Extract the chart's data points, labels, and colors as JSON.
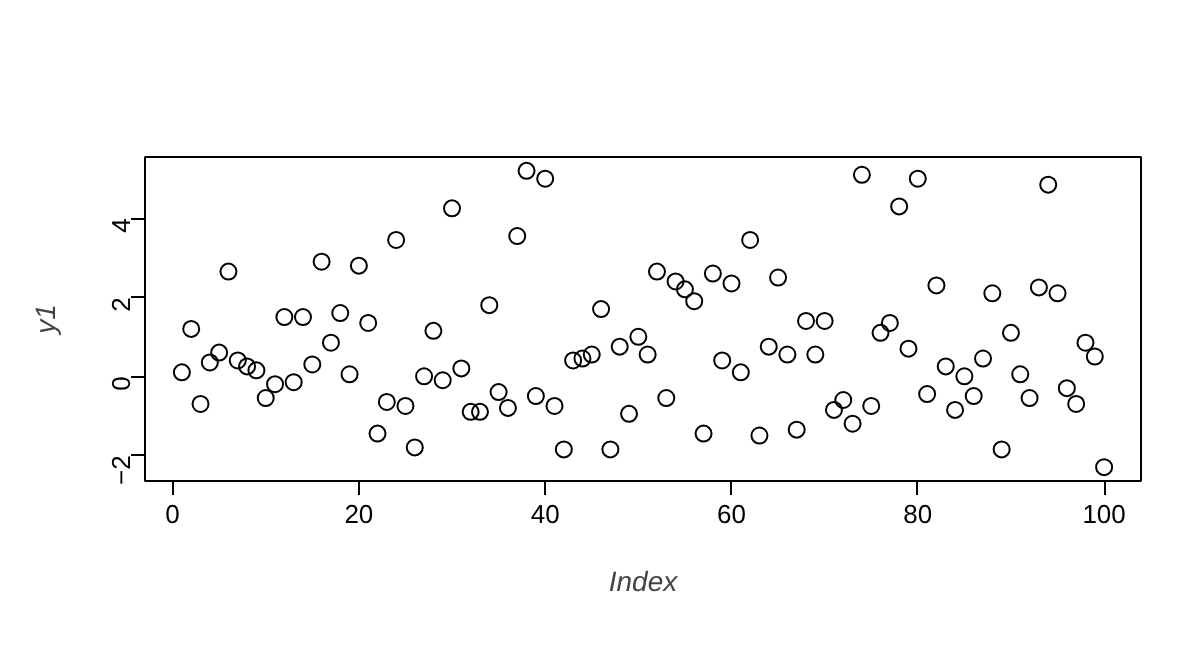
{
  "chart_data": {
    "type": "scatter",
    "xlabel": "Index",
    "ylabel": "y1",
    "marker": "circle",
    "grid": false,
    "xlim": [
      -2.96,
      103.96
    ],
    "ylim": [
      -2.65,
      5.55
    ],
    "xticks": [
      0,
      20,
      40,
      60,
      80,
      100
    ],
    "yticks": [
      -2,
      0,
      2,
      4
    ],
    "x": [
      1,
      2,
      3,
      4,
      5,
      6,
      7,
      8,
      9,
      10,
      11,
      12,
      13,
      14,
      15,
      16,
      17,
      18,
      19,
      20,
      21,
      22,
      23,
      24,
      25,
      26,
      27,
      28,
      29,
      30,
      31,
      32,
      33,
      34,
      35,
      36,
      37,
      38,
      39,
      40,
      41,
      42,
      43,
      44,
      45,
      46,
      47,
      48,
      49,
      50,
      51,
      52,
      53,
      54,
      55,
      56,
      57,
      58,
      59,
      60,
      61,
      62,
      63,
      64,
      65,
      66,
      67,
      68,
      69,
      70,
      71,
      72,
      73,
      74,
      75,
      76,
      77,
      78,
      79,
      80,
      81,
      82,
      83,
      84,
      85,
      86,
      87,
      88,
      89,
      90,
      91,
      92,
      93,
      94,
      95,
      96,
      97,
      98,
      99,
      100
    ],
    "series": [
      {
        "color": "#000000",
        "values": [
          0.1,
          1.2,
          -0.7,
          0.35,
          0.6,
          2.65,
          0.4,
          0.25,
          0.15,
          -0.55,
          -0.2,
          1.5,
          -0.15,
          1.5,
          0.3,
          2.9,
          0.85,
          1.6,
          0.05,
          2.8,
          1.35,
          -1.45,
          -0.65,
          3.45,
          -0.75,
          -1.8,
          0.0,
          1.15,
          -0.1,
          4.25,
          0.2,
          -0.9,
          -0.9,
          1.8,
          -0.4,
          -0.8,
          3.55,
          5.2,
          -0.5,
          5.0,
          -0.75,
          -1.85,
          0.4,
          0.45,
          0.55,
          1.7,
          -1.85,
          0.75,
          -0.95,
          1.0,
          0.55,
          2.65,
          -0.55,
          2.4,
          2.2,
          1.9,
          -1.45,
          2.6,
          0.4,
          2.35,
          0.1,
          3.45,
          -1.5,
          0.75,
          2.5,
          0.55,
          -1.35,
          1.4,
          0.55,
          1.4,
          -0.85,
          -0.6,
          -1.2,
          5.1,
          -0.75,
          1.1,
          1.35,
          4.3,
          0.7,
          5.0,
          -0.45,
          2.3,
          0.25,
          -0.85,
          0.0,
          -0.5,
          0.45,
          2.1,
          -1.85,
          1.1,
          0.05,
          -0.55,
          2.25,
          4.85,
          2.1,
          -0.3,
          -0.7,
          0.85,
          0.5,
          -2.3
        ]
      }
    ]
  }
}
